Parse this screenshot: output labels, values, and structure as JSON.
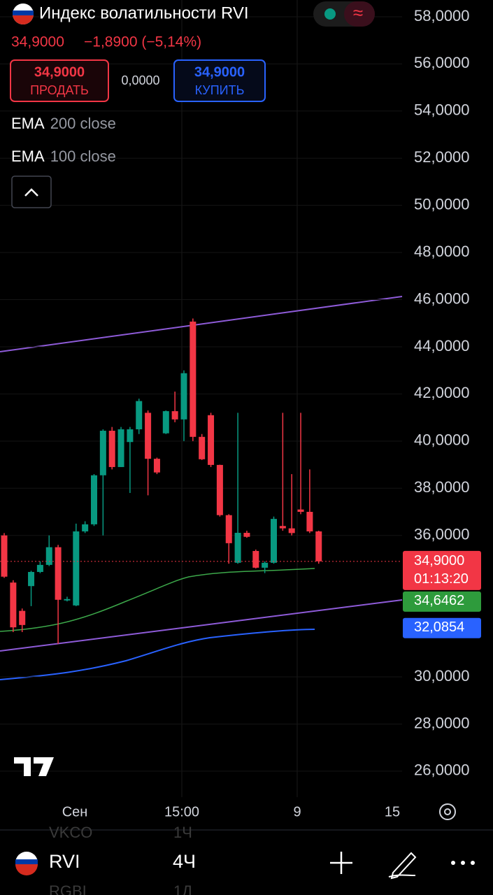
{
  "header": {
    "title": "Индекс волатильности RVI",
    "price": "34,9000",
    "change": "−1,8900 (−5,14%)",
    "sell_price": "34,9000",
    "sell_label": "ПРОДАТЬ",
    "spread": "0,0000",
    "buy_price": "34,9000",
    "buy_label": "КУПИТЬ"
  },
  "indicators": [
    {
      "name": "EMA",
      "params": "200 close"
    },
    {
      "name": "EMA",
      "params": "100 close"
    }
  ],
  "chart_data": {
    "type": "candlestick",
    "up_color": "#089981",
    "down_color": "#f23645",
    "open": [
      36.0,
      34.0,
      32.8,
      33.85,
      34.45,
      34.75,
      35.5,
      33.27,
      33.03,
      36.17,
      36.47,
      38.55,
      40.44,
      38.9,
      39.96,
      40.5,
      41.2,
      39.25,
      40.33,
      41.27,
      40.92,
      45.07,
      40.18,
      41.1,
      38.99,
      36.86,
      34.84,
      36.11,
      35.34,
      34.63,
      34.84,
      36.4,
      36.3,
      37.1,
      37.0,
      36.17
    ],
    "high": [
      36.1,
      34.1,
      32.9,
      34.5,
      34.9,
      36.0,
      35.6,
      33.4,
      36.5,
      36.6,
      38.6,
      40.5,
      40.6,
      40.6,
      40.6,
      41.8,
      41.3,
      39.3,
      41.3,
      42.1,
      43.0,
      45.2,
      40.3,
      41.2,
      39.0,
      36.9,
      41.2,
      36.2,
      35.4,
      34.9,
      36.8,
      41.2,
      38.6,
      41.2,
      38.8,
      36.2
    ],
    "low": [
      34.2,
      31.9,
      31.9,
      33.0,
      34.4,
      34.7,
      31.4,
      33.2,
      33.0,
      36.1,
      36.4,
      36.0,
      38.8,
      38.9,
      37.8,
      40.3,
      37.7,
      38.6,
      40.3,
      40.8,
      40.0,
      40.0,
      39.2,
      38.9,
      36.8,
      34.8,
      34.8,
      35.9,
      34.6,
      34.4,
      34.8,
      36.2,
      36.0,
      36.9,
      36.1,
      34.8
    ],
    "close": [
      34.25,
      32.1,
      32.2,
      34.45,
      34.75,
      35.5,
      33.27,
      33.3,
      36.17,
      36.47,
      38.55,
      40.44,
      38.9,
      40.5,
      40.5,
      41.7,
      39.25,
      38.67,
      41.27,
      40.92,
      42.88,
      40.18,
      39.23,
      38.99,
      36.86,
      35.67,
      36.11,
      35.94,
      34.63,
      34.84,
      36.7,
      36.3,
      36.1,
      37.0,
      36.17,
      34.9
    ],
    "ylim": [
      24.9,
      58.71
    ],
    "yticks": [
      {
        "value": 58,
        "label": "58,0000"
      },
      {
        "value": 56,
        "label": "56,0000"
      },
      {
        "value": 54,
        "label": "54,0000"
      },
      {
        "value": 52,
        "label": "52,0000"
      },
      {
        "value": 50,
        "label": "50,0000"
      },
      {
        "value": 48,
        "label": "48,0000"
      },
      {
        "value": 46,
        "label": "46,0000"
      },
      {
        "value": 44,
        "label": "44,0000"
      },
      {
        "value": 42,
        "label": "42,0000"
      },
      {
        "value": 40,
        "label": "40,0000"
      },
      {
        "value": 38,
        "label": "38,0000"
      },
      {
        "value": 36,
        "label": "36,0000"
      },
      {
        "value": 30,
        "label": "30,0000"
      },
      {
        "value": 28,
        "label": "28,0000"
      },
      {
        "value": 26,
        "label": "26,0000"
      }
    ],
    "x_labels": [
      "Сен",
      "15:00",
      "9",
      "15"
    ],
    "last_price": {
      "value": 34.9,
      "label": "34,9000",
      "countdown": "01:13:20",
      "color": "#f23645"
    },
    "indicator_tags": [
      {
        "value": 34.6462,
        "label": "34,6462",
        "color": "#2e9b3c"
      },
      {
        "value": 32.0854,
        "label": "32,0854",
        "color": "#2962ff"
      }
    ]
  },
  "bottom_bar": {
    "symbol": "RVI",
    "interval": "4Ч",
    "ghost": [
      "VKCO",
      "1Ч",
      "RGBI",
      "1Д"
    ]
  }
}
